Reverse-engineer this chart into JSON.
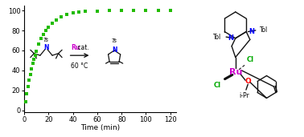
{
  "xlabel": "Time (min)",
  "xlim": [
    0,
    125
  ],
  "ylim": [
    -2,
    105
  ],
  "xticks": [
    0,
    20,
    40,
    60,
    80,
    100,
    120
  ],
  "yticks": [
    0,
    20,
    40,
    60,
    80,
    100
  ],
  "scatter_color": "#22bb00",
  "background_color": "#ffffff",
  "curve_k": 0.09,
  "curve_max": 100,
  "scatter_x": [
    1,
    2,
    3,
    4,
    5,
    6,
    7,
    8,
    9,
    10,
    12,
    14,
    16,
    18,
    20,
    23,
    26,
    30,
    35,
    40,
    45,
    50,
    60,
    70,
    80,
    90,
    100,
    110,
    120
  ],
  "ru_color": "#cc00cc",
  "n_color": "#0000ff",
  "cl_color": "#00aa00",
  "o_color": "#ff0000",
  "ru_atom_color": "#cc00cc",
  "lc": "#111111",
  "lw": 0.9
}
